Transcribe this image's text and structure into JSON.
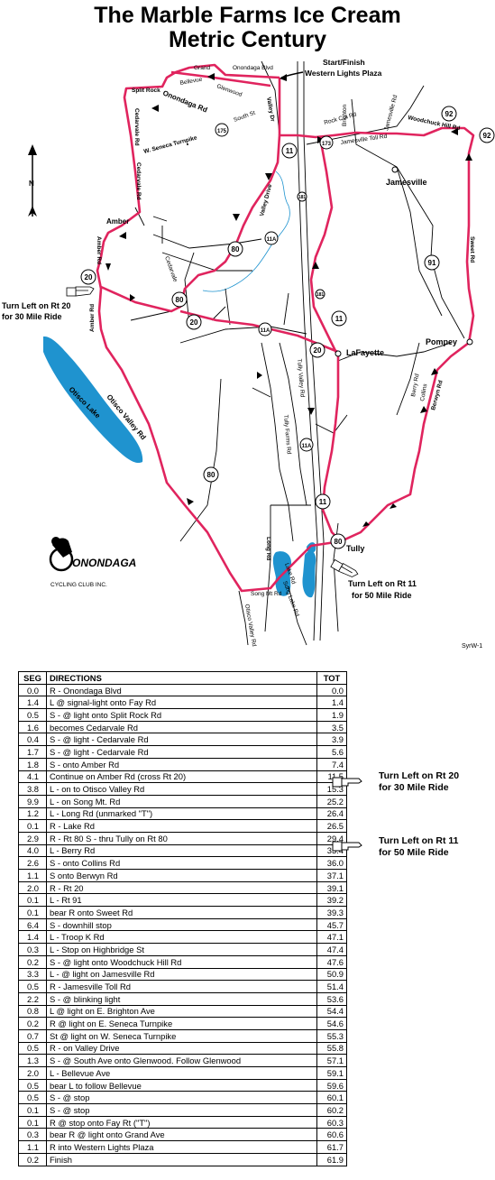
{
  "title": {
    "line1": "The Marble Farms Ice Cream",
    "line2": "Metric Century"
  },
  "map": {
    "start_finish": [
      "Start/Finish",
      "Western Lights Plaza"
    ],
    "compass": "N",
    "turn_notes": [
      {
        "line1": "Turn Left on Rt 20",
        "line2": "for 30 Mile Ride"
      },
      {
        "line1": "Turn Left on Rt 11",
        "line2": "for 50 Mile Ride"
      }
    ],
    "roads": [
      "Onondaga Blvd",
      "Grand",
      "Bellevue",
      "Glenwood",
      "Split Rock",
      "Onondaga Rd",
      "Cedarvale Rd",
      "W. Seneca Turnpike",
      "South St",
      "Valley Dr",
      "Brighton",
      "Rock Cut Rd",
      "Jamesville Toll Rd",
      "Jamesville Rd",
      "Woodchuck Hill Rd",
      "Amber",
      "Amber Rd",
      "Valley Drive",
      "Cedarvale",
      "Sweet Rd",
      "Otisco Lake",
      "Otisco Valley Rd",
      "Tully Valley Rd",
      "Tully Farms Rd",
      "Berry Rd",
      "Collins",
      "Berwyn Rd",
      "Long Rd",
      "Lake Rd",
      "Song Mt Rd",
      "Song Lake Rd",
      "Otisco Valley Rd"
    ],
    "places": [
      "Jamesville",
      "LaFayette",
      "Pompey",
      "Tully"
    ],
    "shields": [
      "92",
      "92",
      "175",
      "173",
      "11",
      "181",
      "11A",
      "80",
      "80",
      "20",
      "20",
      "91",
      "11",
      "11A",
      "181",
      "11",
      "80",
      "20",
      "11",
      "80"
    ],
    "club": {
      "name": "ONONDAGA",
      "sub": "CYCLING CLUB INC."
    },
    "source": "SyrW-1",
    "colors": {
      "route": "#e0245e",
      "lake": "#1f93cf",
      "road": "#000000"
    }
  },
  "table": {
    "headers": {
      "seg": "SEG",
      "directions": "DIRECTIONS",
      "tot": "TOT"
    },
    "rows": [
      {
        "seg": "0.0",
        "dir": "R - Onondaga Blvd",
        "tot": "0.0"
      },
      {
        "seg": "1.4",
        "dir": "L @ signal-light onto Fay Rd",
        "tot": "1.4"
      },
      {
        "seg": "0.5",
        "dir": "S - @ light onto Split Rock Rd",
        "tot": "1.9"
      },
      {
        "seg": "1.6",
        "dir": "becomes Cedarvale Rd",
        "tot": "3.5"
      },
      {
        "seg": "0.4",
        "dir": "S - @ light - Cedarvale Rd",
        "tot": "3.9"
      },
      {
        "seg": "1.7",
        "dir": "S - @ light - Cedarvale Rd",
        "tot": "5.6"
      },
      {
        "seg": "1.8",
        "dir": "S - onto Amber Rd",
        "tot": "7.4"
      },
      {
        "seg": "4.1",
        "dir": "Continue on Amber Rd (cross Rt 20)",
        "tot": "11.5"
      },
      {
        "seg": "3.8",
        "dir": "L - on to Otisco Valley Rd",
        "tot": "15.3"
      },
      {
        "seg": "9.9",
        "dir": "L - on Song Mt. Rd",
        "tot": "25.2"
      },
      {
        "seg": "1.2",
        "dir": "L - Long Rd (unmarked \"T\")",
        "tot": "26.4"
      },
      {
        "seg": "0.1",
        "dir": "R - Lake Rd",
        "tot": "26.5"
      },
      {
        "seg": "2.9",
        "dir": "R - Rt 80 S - thru Tully on Rt 80",
        "tot": "29.4"
      },
      {
        "seg": "4.0",
        "dir": "L - Berry Rd",
        "tot": "33.4"
      },
      {
        "seg": "2.6",
        "dir": "S - onto Collins Rd",
        "tot": "36.0"
      },
      {
        "seg": "1.1",
        "dir": "S onto Berwyn Rd",
        "tot": "37.1"
      },
      {
        "seg": "2.0",
        "dir": "R - Rt 20",
        "tot": "39.1"
      },
      {
        "seg": "0.1",
        "dir": "L - Rt 91",
        "tot": "39.2"
      },
      {
        "seg": "0.1",
        "dir": "bear R onto Sweet Rd",
        "tot": "39.3"
      },
      {
        "seg": "6.4",
        "dir": "S - downhill stop",
        "tot": "45.7"
      },
      {
        "seg": "1.4",
        "dir": "L - Troop K Rd",
        "tot": "47.1"
      },
      {
        "seg": "0.3",
        "dir": "L - Stop on Highbridge St",
        "tot": "47.4"
      },
      {
        "seg": "0.2",
        "dir": "S - @ light onto Woodchuck Hill Rd",
        "tot": "47.6"
      },
      {
        "seg": "3.3",
        "dir": "L - @ light on Jamesville Rd",
        "tot": "50.9"
      },
      {
        "seg": "0.5",
        "dir": "R - Jamesville Toll Rd",
        "tot": "51.4"
      },
      {
        "seg": "2.2",
        "dir": "S - @ blinking light",
        "tot": "53.6"
      },
      {
        "seg": "0.8",
        "dir": "L @ light on E. Brighton Ave",
        "tot": "54.4"
      },
      {
        "seg": "0.2",
        "dir": "R @ light on E. Seneca Turnpike",
        "tot": "54.6"
      },
      {
        "seg": "0.7",
        "dir": "St @ light on W. Seneca Turnpike",
        "tot": "55.3"
      },
      {
        "seg": "0.5",
        "dir": "R - on Valley Drive",
        "tot": "55.8"
      },
      {
        "seg": "1.3",
        "dir": "S - @ South Ave onto Glenwood. Follow Glenwood",
        "tot": "57.1"
      },
      {
        "seg": "2.0",
        "dir": "L - Bellevue Ave",
        "tot": "59.1"
      },
      {
        "seg": "0.5",
        "dir": "bear L to follow Bellevue",
        "tot": "59.6"
      },
      {
        "seg": "0.5",
        "dir": "S - @ stop",
        "tot": "60.1"
      },
      {
        "seg": "0.1",
        "dir": "S - @ stop",
        "tot": "60.2"
      },
      {
        "seg": "0.1",
        "dir": "R @ stop onto Fay Rt (\"T\")",
        "tot": "60.3"
      },
      {
        "seg": "0.3",
        "dir": "bear R @ light onto Grand Ave",
        "tot": "60.6"
      },
      {
        "seg": "1.1",
        "dir": "R into Western Lights Plaza",
        "tot": "61.7"
      },
      {
        "seg": "0.2",
        "dir": "Finish",
        "tot": "61.9"
      }
    ],
    "notes": [
      {
        "line1": "Turn Left on Rt 20",
        "line2": "for 30 Mile Ride"
      },
      {
        "line1": "Turn Left on Rt 11",
        "line2": "for 50 Mile Ride"
      }
    ]
  }
}
